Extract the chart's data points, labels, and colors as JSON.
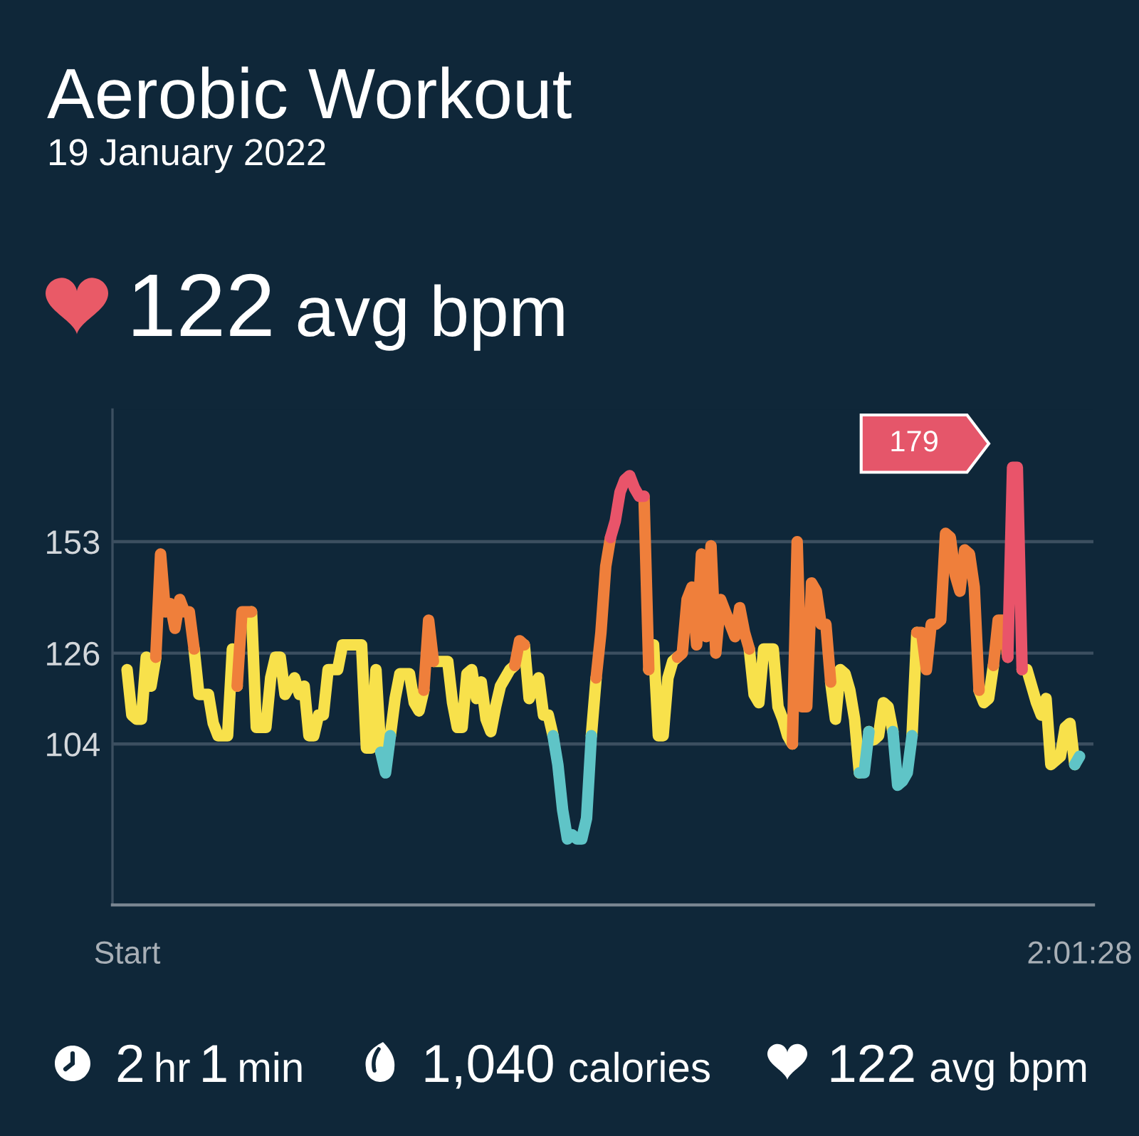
{
  "chart_data": {
    "type": "line",
    "title": "Aerobic Workout",
    "subtitle": "19 January 2022",
    "annotations": [
      "122",
      "avg bpm",
      "2",
      "hr",
      "1",
      "min",
      "1,040",
      "calories",
      "122",
      "avg bpm",
      "179"
    ],
    "categories": [
      "Start",
      null,
      null,
      null,
      null,
      null,
      null,
      null,
      null,
      null,
      null,
      null,
      null,
      null,
      null,
      null,
      null,
      null,
      null,
      null,
      null,
      null,
      null,
      null,
      null,
      null,
      null,
      null,
      null,
      null,
      null,
      null,
      null,
      null,
      null,
      null,
      null,
      null,
      null,
      null,
      null,
      null,
      null,
      null,
      null,
      null,
      null,
      null,
      null,
      null,
      null,
      null,
      null,
      null,
      null,
      null,
      null,
      null,
      null,
      null,
      null,
      null,
      null,
      null,
      null,
      null,
      null,
      null,
      null,
      null,
      null,
      null,
      null,
      null,
      null,
      null,
      null,
      null,
      null,
      null,
      null,
      null,
      null,
      null,
      null,
      null,
      null,
      null,
      null,
      null,
      null,
      null,
      null,
      null,
      null,
      null,
      null,
      null,
      null,
      null,
      null,
      null,
      null,
      null,
      null,
      null,
      null,
      null,
      null,
      null,
      null,
      null,
      null,
      null,
      null,
      null,
      null,
      null,
      null,
      null,
      null,
      null,
      null,
      null,
      null,
      null,
      null,
      null,
      null,
      null,
      null,
      null,
      null,
      null,
      null,
      null,
      null,
      null,
      null,
      null,
      null,
      null,
      null,
      null,
      null,
      null,
      null,
      null,
      null,
      null,
      null,
      null,
      null,
      null,
      null,
      null,
      null,
      null,
      null,
      null,
      null,
      null,
      null,
      null,
      null,
      null,
      null,
      null,
      null,
      null,
      null,
      null,
      null,
      null,
      null,
      null,
      null,
      null,
      null,
      null,
      null,
      null,
      null,
      null,
      null,
      null,
      null,
      null,
      null,
      null,
      null,
      null,
      null,
      null,
      null,
      null,
      null,
      null,
      null,
      "2:01:28"
    ],
    "series": [
      {
        "color": "#f8e14b",
        "values": [
          122,
          111,
          110,
          110,
          125,
          118,
          125,
          null,
          null,
          null,
          null,
          null,
          null,
          null,
          127,
          116,
          116,
          116,
          109,
          106,
          106,
          106,
          127,
          118,
          null,
          null,
          136,
          108,
          108,
          108,
          120,
          125,
          125,
          116,
          118,
          120,
          116,
          118,
          106,
          106,
          111,
          111,
          122,
          122,
          122,
          128,
          128,
          128,
          128,
          128,
          103,
          103,
          122,
          102,
          null,
          106,
          115,
          121,
          121,
          121,
          114,
          112,
          117,
          null,
          124,
          124,
          124,
          124,
          114,
          108,
          108,
          121,
          122,
          115,
          119,
          110,
          107,
          113,
          118,
          120,
          122,
          123,
          null,
          128,
          115,
          118,
          120,
          111,
          111,
          106,
          null,
          null,
          null,
          null,
          null,
          null,
          null,
          106,
          120,
          null,
          null,
          null,
          null,
          null,
          null,
          null,
          null,
          null,
          null,
          122,
          128,
          106,
          106,
          120,
          124,
          125,
          null,
          null,
          null,
          null,
          null,
          null,
          null,
          null,
          null,
          null,
          null,
          null,
          null,
          null,
          127,
          116,
          114,
          127,
          127,
          127,
          113,
          110,
          106,
          104,
          null,
          null,
          null,
          null,
          null,
          null,
          null,
          119,
          110,
          122,
          121,
          117,
          110,
          97,
          null,
          107,
          105,
          106,
          114,
          113,
          107,
          null,
          null,
          null,
          106,
          131,
          null,
          null,
          null,
          null,
          null,
          null,
          null,
          null,
          null,
          null,
          null,
          null,
          117,
          114,
          115,
          123,
          null,
          null,
          null,
          null,
          null,
          122,
          122,
          118,
          114,
          111,
          115,
          99,
          100,
          101,
          108,
          109,
          99,
          null
        ]
      },
      {
        "color": "#ef7f3b",
        "values": [
          null,
          null,
          null,
          null,
          null,
          null,
          125,
          150,
          136,
          138,
          132,
          139,
          136,
          136,
          127,
          null,
          null,
          null,
          null,
          null,
          null,
          null,
          null,
          118,
          136,
          136,
          136,
          null,
          null,
          null,
          null,
          null,
          null,
          null,
          null,
          null,
          null,
          null,
          null,
          null,
          null,
          null,
          null,
          null,
          null,
          null,
          null,
          null,
          null,
          null,
          null,
          null,
          null,
          null,
          null,
          null,
          null,
          null,
          null,
          null,
          null,
          null,
          117,
          134,
          124,
          null,
          null,
          null,
          null,
          null,
          null,
          null,
          null,
          null,
          null,
          null,
          null,
          null,
          null,
          null,
          null,
          123,
          129,
          128,
          null,
          null,
          null,
          null,
          null,
          null,
          null,
          null,
          null,
          null,
          null,
          null,
          null,
          null,
          120,
          131,
          147,
          154,
          null,
          null,
          null,
          null,
          null,
          null,
          164,
          122,
          null,
          null,
          null,
          null,
          null,
          125,
          126,
          139,
          142,
          128,
          150,
          130,
          152,
          126,
          139,
          136,
          133,
          130,
          137,
          131,
          127,
          null,
          null,
          null,
          null,
          null,
          null,
          null,
          null,
          104,
          153,
          113,
          113,
          143,
          141,
          133,
          133,
          119,
          null,
          null,
          null,
          null,
          null,
          null,
          null,
          null,
          null,
          null,
          null,
          null,
          null,
          null,
          null,
          null,
          null,
          131,
          131,
          122,
          133,
          133,
          134,
          155,
          154,
          145,
          141,
          151,
          150,
          142,
          117,
          null,
          null,
          123,
          134,
          134,
          125,
          null,
          null,
          null,
          null,
          null,
          null,
          null,
          null,
          null,
          null,
          null,
          null,
          null,
          null,
          null
        ]
      },
      {
        "color": "#e9546a",
        "values": [
          null,
          null,
          null,
          null,
          null,
          null,
          null,
          null,
          null,
          null,
          null,
          null,
          null,
          null,
          null,
          null,
          null,
          null,
          null,
          null,
          null,
          null,
          null,
          null,
          null,
          null,
          null,
          null,
          null,
          null,
          null,
          null,
          null,
          null,
          null,
          null,
          null,
          null,
          null,
          null,
          null,
          null,
          null,
          null,
          null,
          null,
          null,
          null,
          null,
          null,
          null,
          null,
          null,
          null,
          null,
          null,
          null,
          null,
          null,
          null,
          null,
          null,
          null,
          null,
          null,
          null,
          null,
          null,
          null,
          null,
          null,
          null,
          null,
          null,
          null,
          null,
          null,
          null,
          null,
          null,
          null,
          null,
          null,
          null,
          null,
          null,
          null,
          null,
          null,
          null,
          null,
          null,
          null,
          null,
          null,
          null,
          null,
          null,
          null,
          null,
          null,
          154,
          158,
          165,
          168,
          169,
          166,
          164,
          164,
          null,
          null,
          null,
          null,
          null,
          null,
          null,
          null,
          null,
          null,
          null,
          null,
          null,
          null,
          null,
          null,
          null,
          null,
          null,
          null,
          null,
          null,
          null,
          null,
          null,
          null,
          null,
          null,
          null,
          null,
          null,
          null,
          null,
          null,
          null,
          null,
          null,
          null,
          null,
          null,
          null,
          null,
          null,
          null,
          null,
          null,
          null,
          null,
          null,
          null,
          null,
          null,
          null,
          null,
          null,
          null,
          null,
          null,
          null,
          null,
          null,
          null,
          null,
          null,
          null,
          null,
          null,
          null,
          null,
          null,
          null,
          null,
          null,
          null,
          null,
          125,
          171,
          171,
          122,
          null,
          null,
          null,
          null,
          null,
          null,
          null,
          null,
          null,
          null,
          null,
          null
        ]
      },
      {
        "color": "#5fc4c7",
        "values": [
          null,
          null,
          null,
          null,
          null,
          null,
          null,
          null,
          null,
          null,
          null,
          null,
          null,
          null,
          null,
          null,
          null,
          null,
          null,
          null,
          null,
          null,
          null,
          null,
          null,
          null,
          null,
          null,
          null,
          null,
          null,
          null,
          null,
          null,
          null,
          null,
          null,
          null,
          null,
          null,
          null,
          null,
          null,
          null,
          null,
          null,
          null,
          null,
          null,
          null,
          null,
          null,
          null,
          102,
          97,
          106,
          null,
          null,
          null,
          null,
          null,
          null,
          null,
          null,
          null,
          null,
          null,
          null,
          null,
          null,
          null,
          null,
          null,
          null,
          null,
          null,
          null,
          null,
          null,
          null,
          null,
          null,
          null,
          null,
          null,
          null,
          null,
          null,
          null,
          106,
          99,
          88,
          81,
          82,
          81,
          81,
          86,
          106,
          null,
          null,
          null,
          null,
          null,
          null,
          null,
          null,
          null,
          null,
          null,
          null,
          null,
          null,
          null,
          null,
          null,
          null,
          null,
          null,
          null,
          null,
          null,
          null,
          null,
          null,
          null,
          null,
          null,
          null,
          null,
          null,
          null,
          null,
          null,
          null,
          null,
          null,
          null,
          null,
          null,
          null,
          null,
          null,
          null,
          null,
          null,
          null,
          null,
          null,
          null,
          null,
          null,
          null,
          null,
          97,
          97,
          107,
          null,
          null,
          null,
          null,
          107,
          94,
          95,
          97,
          106,
          null,
          null,
          null,
          null,
          null,
          null,
          null,
          null,
          null,
          null,
          null,
          null,
          null,
          null,
          null,
          null,
          null,
          null,
          null,
          null,
          null,
          null,
          null,
          null,
          null,
          null,
          null,
          null,
          null,
          null,
          null,
          null,
          null,
          99,
          101
        ]
      }
    ],
    "ylim": [
      65,
      185
    ],
    "yticks": [
      104,
      126,
      153
    ],
    "grid": "y"
  }
}
